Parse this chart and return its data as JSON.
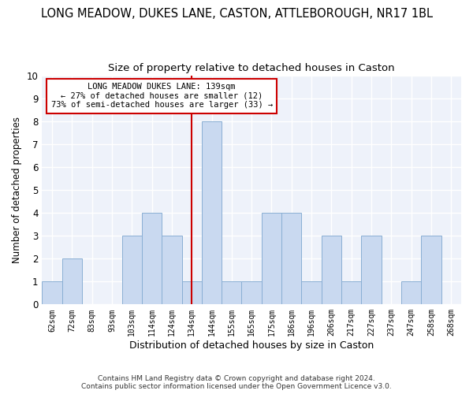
{
  "title": "LONG MEADOW, DUKES LANE, CASTON, ATTLEBOROUGH, NR17 1BL",
  "subtitle": "Size of property relative to detached houses in Caston",
  "xlabel": "Distribution of detached houses by size in Caston",
  "ylabel": "Number of detached properties",
  "categories": [
    "62sqm",
    "72sqm",
    "83sqm",
    "93sqm",
    "103sqm",
    "114sqm",
    "124sqm",
    "134sqm",
    "144sqm",
    "155sqm",
    "165sqm",
    "175sqm",
    "186sqm",
    "196sqm",
    "206sqm",
    "217sqm",
    "227sqm",
    "237sqm",
    "247sqm",
    "258sqm",
    "268sqm"
  ],
  "values": [
    1,
    2,
    0,
    0,
    3,
    4,
    3,
    1,
    8,
    1,
    1,
    4,
    4,
    1,
    3,
    1,
    3,
    0,
    1,
    3,
    0
  ],
  "bar_color": "#c9d9f0",
  "bar_edge_color": "#8aafd4",
  "highlight_index": 7,
  "highlight_line_color": "#cc0000",
  "ylim": [
    0,
    10
  ],
  "yticks": [
    0,
    1,
    2,
    3,
    4,
    5,
    6,
    7,
    8,
    9,
    10
  ],
  "annotation_title": "LONG MEADOW DUKES LANE: 139sqm",
  "annotation_line1": "← 27% of detached houses are smaller (12)",
  "annotation_line2": "73% of semi-detached houses are larger (33) →",
  "annotation_box_color": "#cc0000",
  "footer1": "Contains HM Land Registry data © Crown copyright and database right 2024.",
  "footer2": "Contains public sector information licensed under the Open Government Licence v3.0.",
  "bg_color": "#eef2fa",
  "title_fontsize": 10.5,
  "subtitle_fontsize": 9.5
}
